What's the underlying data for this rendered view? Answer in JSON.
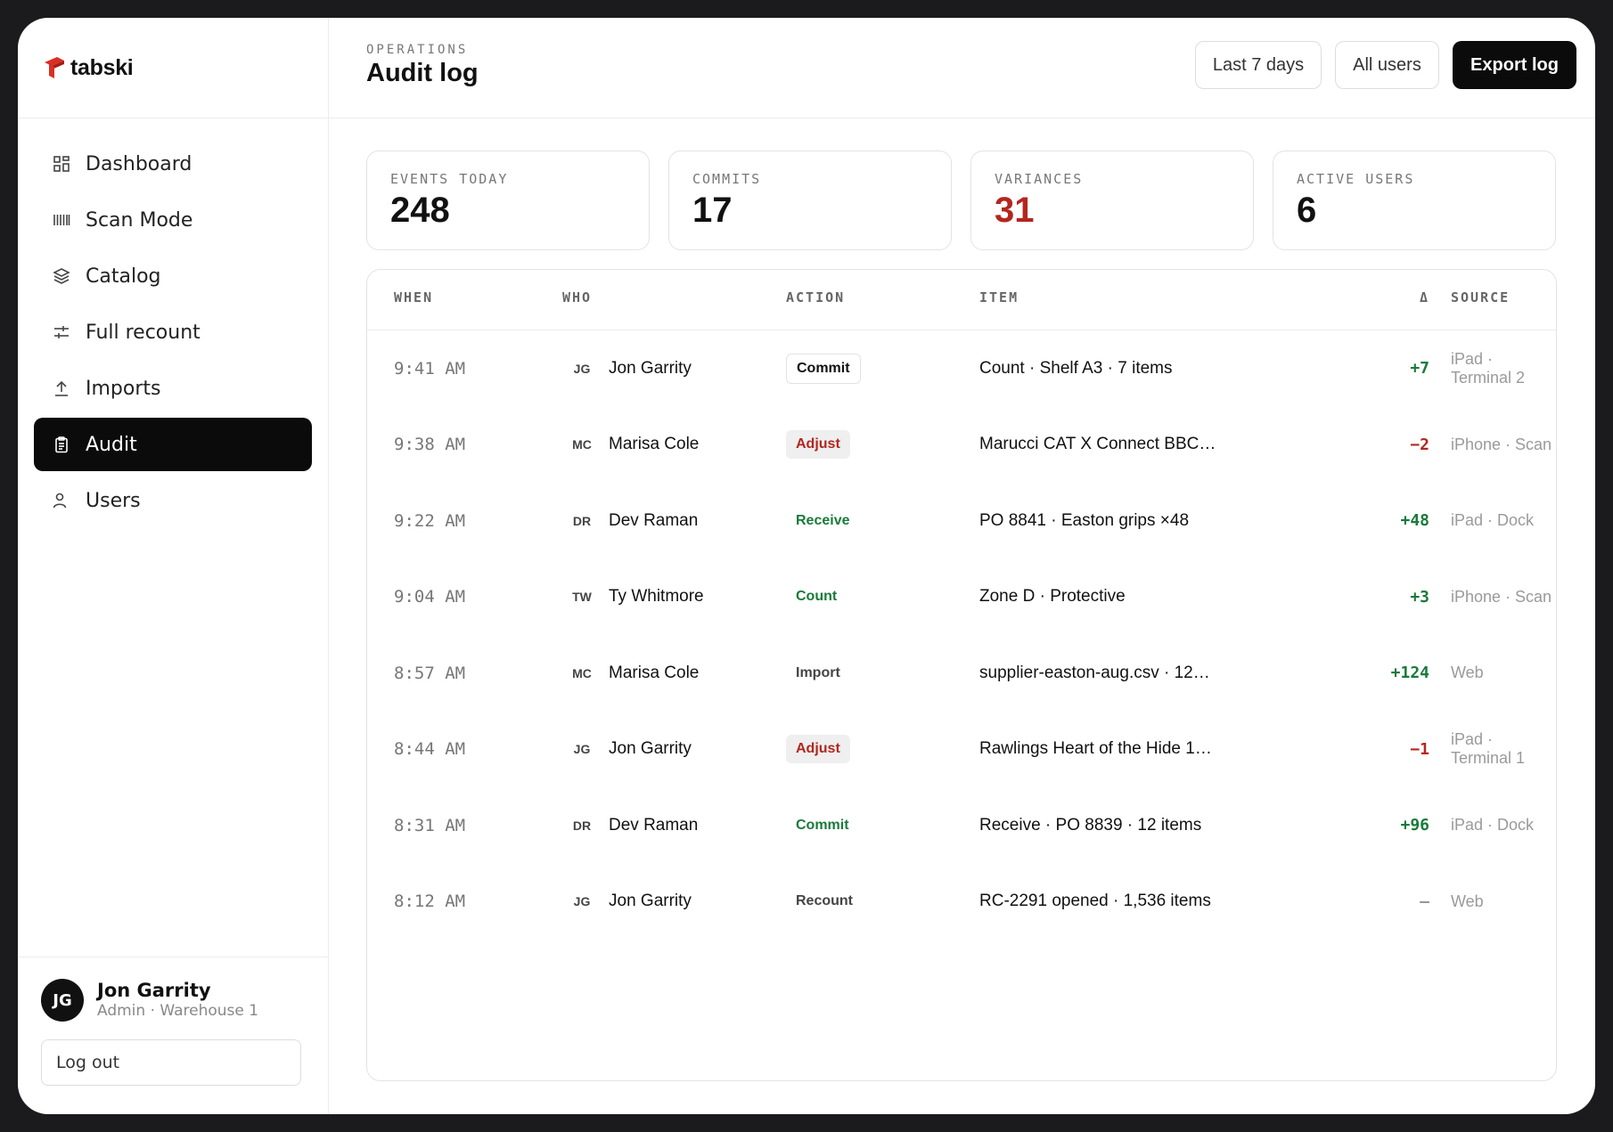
{
  "brand": {
    "name": "tabski",
    "accent": "#d93025"
  },
  "sidebar": {
    "items": [
      {
        "label": "Dashboard",
        "icon": "grid-icon",
        "active": false
      },
      {
        "label": "Scan Mode",
        "icon": "barcode-icon",
        "active": false
      },
      {
        "label": "Catalog",
        "icon": "layers-icon",
        "active": false
      },
      {
        "label": "Full recount",
        "icon": "sliders-icon",
        "active": false
      },
      {
        "label": "Imports",
        "icon": "upload-icon",
        "active": false
      },
      {
        "label": "Audit",
        "icon": "clipboard-icon",
        "active": true
      },
      {
        "label": "Users",
        "icon": "user-icon",
        "active": false
      }
    ],
    "user": {
      "initials": "JG",
      "name": "Jon Garrity",
      "role": "Admin · Warehouse 1"
    },
    "logout_label": "Log out"
  },
  "header": {
    "eyebrow": "OPERATIONS",
    "title": "Audit log",
    "filter_range": "Last 7 days",
    "filter_users": "All users",
    "export_label": "Export log"
  },
  "stats": [
    {
      "label": "EVENTS TODAY",
      "value": "248",
      "tone": "default"
    },
    {
      "label": "COMMITS",
      "value": "17",
      "tone": "default"
    },
    {
      "label": "VARIANCES",
      "value": "31",
      "tone": "red"
    },
    {
      "label": "ACTIVE USERS",
      "value": "6",
      "tone": "default"
    }
  ],
  "table": {
    "columns": {
      "when": "WHEN",
      "who": "WHO",
      "action": "ACTION",
      "item": "ITEM",
      "delta": "Δ",
      "source": "SOURCE"
    },
    "rows": [
      {
        "when": "9:41 AM",
        "initials": "JG",
        "who": "Jon Garrity",
        "action": "Commit",
        "action_style": "outline",
        "item": "Count · Shelf A3 · 7 items",
        "delta": "+7",
        "delta_tone": "pos",
        "source": "iPad · Terminal 2"
      },
      {
        "when": "9:38 AM",
        "initials": "MC",
        "who": "Marisa Cole",
        "action": "Adjust",
        "action_style": "red",
        "item": "Marucci CAT X Connect BBC…",
        "delta": "−2",
        "delta_tone": "neg",
        "source": "iPhone · Scan"
      },
      {
        "when": "9:22 AM",
        "initials": "DR",
        "who": "Dev Raman",
        "action": "Receive",
        "action_style": "green",
        "item": "PO 8841 · Easton grips ×48",
        "delta": "+48",
        "delta_tone": "pos",
        "source": "iPad · Dock"
      },
      {
        "when": "9:04 AM",
        "initials": "TW",
        "who": "Ty Whitmore",
        "action": "Count",
        "action_style": "green",
        "item": "Zone D · Protective",
        "delta": "+3",
        "delta_tone": "pos",
        "source": "iPhone · Scan"
      },
      {
        "when": "8:57 AM",
        "initials": "MC",
        "who": "Marisa Cole",
        "action": "Import",
        "action_style": "plain",
        "item": "supplier-easton-aug.csv · 12…",
        "delta": "+124",
        "delta_tone": "pos",
        "source": "Web"
      },
      {
        "when": "8:44 AM",
        "initials": "JG",
        "who": "Jon Garrity",
        "action": "Adjust",
        "action_style": "red",
        "item": "Rawlings Heart of the Hide 1…",
        "delta": "−1",
        "delta_tone": "neg",
        "source": "iPad · Terminal 1"
      },
      {
        "when": "8:31 AM",
        "initials": "DR",
        "who": "Dev Raman",
        "action": "Commit",
        "action_style": "green",
        "item": "Receive · PO 8839 · 12 items",
        "delta": "+96",
        "delta_tone": "pos",
        "source": "iPad · Dock"
      },
      {
        "when": "8:12 AM",
        "initials": "JG",
        "who": "Jon Garrity",
        "action": "Recount",
        "action_style": "plain",
        "item": "RC-2291 opened · 1,536 items",
        "delta": "—",
        "delta_tone": "neu",
        "source": "Web"
      }
    ]
  },
  "colors": {
    "positive": "#1a7a3a",
    "negative": "#b3261e",
    "primary": "#0b0b0b"
  }
}
